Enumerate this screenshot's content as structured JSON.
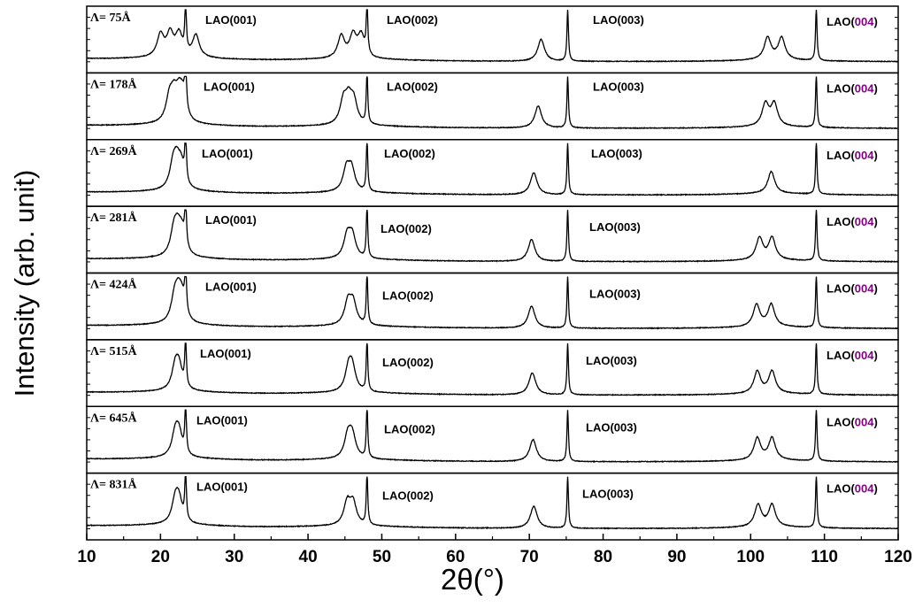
{
  "chart_data": {
    "type": "line",
    "xlabel": "2θ(°)",
    "ylabel": "Intensity (arb. unit)",
    "xlim": [
      10,
      120
    ],
    "x_ticks": [
      "10",
      "20",
      "30",
      "40",
      "50",
      "60",
      "70",
      "80",
      "90",
      "100",
      "110",
      "120"
    ],
    "grid": false,
    "line_color": "#000000",
    "purple_accent": "#800080",
    "peak_labels": [
      {
        "prefix": "LAO(",
        "index": "001",
        "suffix": ")"
      },
      {
        "prefix": "LAO(",
        "index": "002",
        "suffix": ")"
      },
      {
        "prefix": "LAO(",
        "index": "003",
        "suffix": ")"
      },
      {
        "prefix": "LAO(",
        "index": "004",
        "suffix": ")"
      }
    ],
    "substrate_peaks_2theta": [
      23.4,
      48.0,
      75.2,
      108.9
    ],
    "series": [
      {
        "label": "Λ= 75Å",
        "period_A": 75,
        "film_peaks_2theta": [
          20.0,
          21.3,
          22.5,
          24.8,
          44.5,
          46.1,
          47.2,
          71.6,
          102.3,
          104.2
        ]
      },
      {
        "label": "Λ= 178Å",
        "period_A": 178,
        "film_peaks_2theta": [
          21.2,
          21.8,
          22.5,
          23.0,
          44.8,
          45.5,
          46.2,
          71.2,
          102.0,
          103.2
        ]
      },
      {
        "label": "Λ= 269Å",
        "period_A": 269,
        "film_peaks_2theta": [
          21.7,
          22.2,
          22.8,
          45.2,
          45.9,
          70.6,
          102.8
        ]
      },
      {
        "label": "Λ= 281Å",
        "period_A": 281,
        "film_peaks_2theta": [
          21.8,
          22.3,
          22.9,
          45.3,
          46.0,
          70.3,
          101.2,
          102.9
        ]
      },
      {
        "label": "Λ= 424Å",
        "period_A": 424,
        "film_peaks_2theta": [
          21.9,
          22.4,
          22.9,
          45.4,
          46.1,
          70.3,
          100.8,
          102.8
        ]
      },
      {
        "label": "Λ= 515Å",
        "period_A": 515,
        "film_peaks_2theta": [
          22.0,
          22.5,
          45.5,
          46.0,
          70.4,
          100.9,
          102.9
        ]
      },
      {
        "label": "Λ= 645Å",
        "period_A": 645,
        "film_peaks_2theta": [
          22.0,
          22.5,
          45.4,
          46.0,
          70.5,
          100.9,
          102.9
        ]
      },
      {
        "label": "Λ= 831Å",
        "period_A": 831,
        "film_peaks_2theta": [
          22.0,
          22.5,
          45.3,
          46.1,
          70.6,
          101.0,
          102.9
        ]
      }
    ]
  }
}
